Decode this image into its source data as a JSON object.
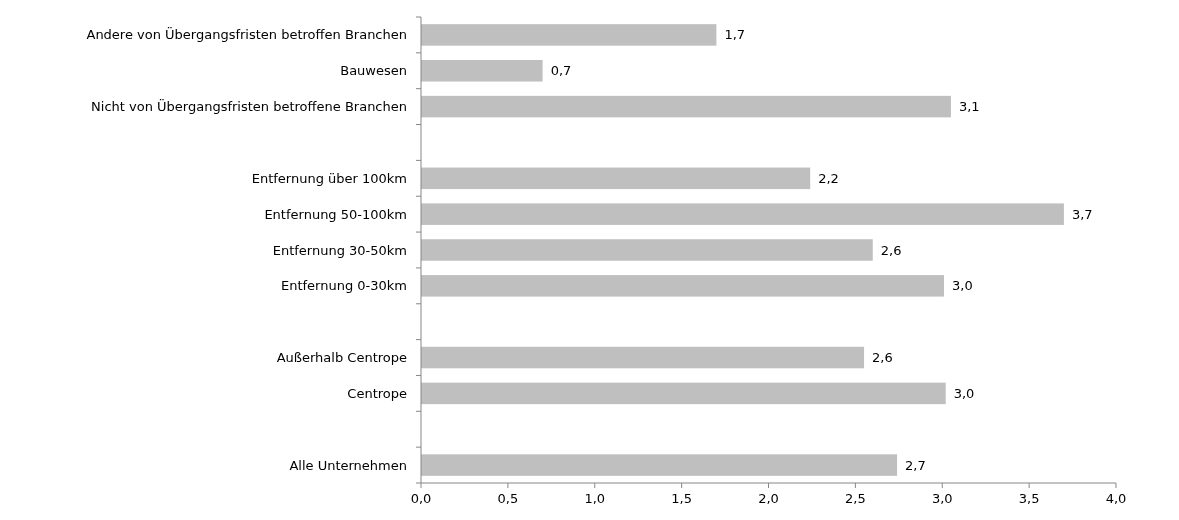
{
  "chart_data": {
    "type": "bar",
    "orientation": "horizontal",
    "categories": [
      "Andere von Übergangsfristen betroffen Branchen",
      "Bauwesen",
      "Nicht von Übergangsfristen betroffene Branchen",
      null,
      "Entfernung über 100km",
      "Entfernung 50-100km",
      "Entfernung 30-50km",
      "Entfernung 0-30km",
      null,
      "Außerhalb Centrope",
      "Centrope",
      null,
      "Alle Unternehmen"
    ],
    "values": [
      1.7,
      0.7,
      3.05,
      null,
      2.24,
      3.7,
      2.6,
      3.01,
      null,
      2.55,
      3.02,
      null,
      2.74
    ],
    "value_labels": [
      "1,7",
      "0,7",
      "3,1",
      null,
      "2,2",
      "3,7",
      "2,6",
      "3,0",
      null,
      "2,6",
      "3,0",
      null,
      "2,7"
    ],
    "color": "#bfbfbf",
    "xlim": [
      0,
      4
    ],
    "xticks": [
      {
        "value": 0,
        "label": "0,0"
      },
      {
        "value": 0.5,
        "label": "0,5"
      },
      {
        "value": 1,
        "label": "1,0"
      },
      {
        "value": 1.5,
        "label": "1,5"
      },
      {
        "value": 2,
        "label": "2,0"
      },
      {
        "value": 2.5,
        "label": "2,5"
      },
      {
        "value": 3,
        "label": "3,0"
      },
      {
        "value": 3.5,
        "label": "3,5"
      },
      {
        "value": 4,
        "label": "4,0"
      }
    ],
    "grid": false
  }
}
